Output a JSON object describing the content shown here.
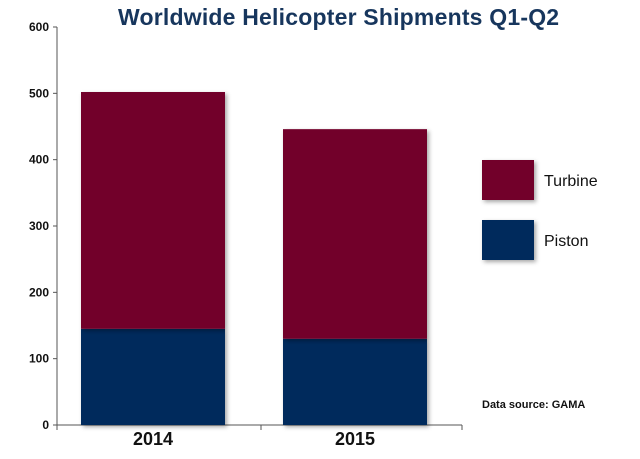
{
  "chart_data": {
    "type": "bar",
    "stacked": true,
    "title": "Worldwide Helicopter Shipments Q1-Q2",
    "categories": [
      "2014",
      "2015"
    ],
    "series": [
      {
        "name": "Piston",
        "values": [
          145,
          130
        ],
        "color": "#002a5c"
      },
      {
        "name": "Turbine",
        "values": [
          357,
          316
        ],
        "color": "#72002a"
      }
    ],
    "ylim": [
      0,
      600
    ],
    "yticks": [
      0,
      100,
      200,
      300,
      400,
      500,
      600
    ],
    "legend": {
      "position": "right",
      "items": [
        {
          "label": "Turbine",
          "color": "#72002a"
        },
        {
          "label": "Piston",
          "color": "#002a5c"
        }
      ]
    },
    "grid": false,
    "source": "Data source: GAMA"
  }
}
